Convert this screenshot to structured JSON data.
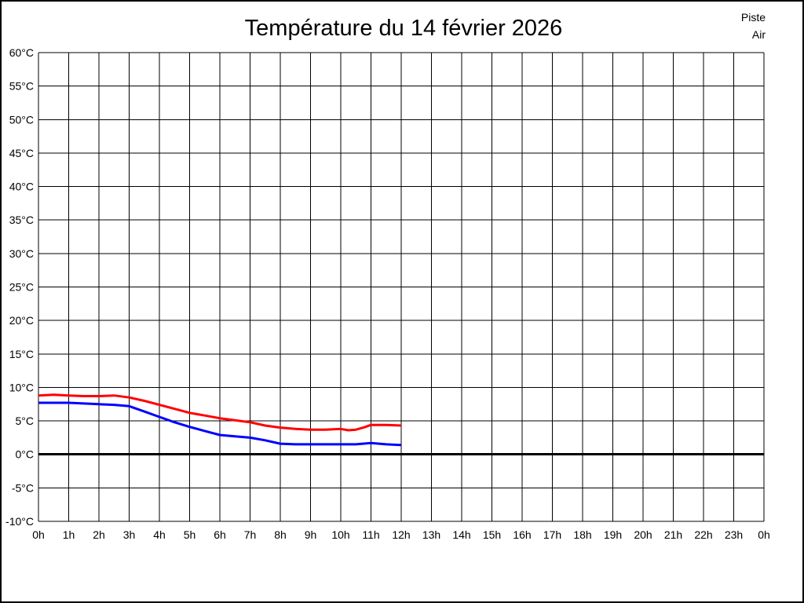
{
  "title": "Température du 14 février 2026",
  "legend": {
    "items": [
      {
        "label": "Piste",
        "color": "#ff0000"
      },
      {
        "label": "Air",
        "color": "#0000ff"
      }
    ]
  },
  "chart_data": {
    "type": "line",
    "title": "Température du 14 février 2026",
    "xlabel": "",
    "ylabel": "",
    "xlim": [
      0,
      24
    ],
    "ylim": [
      -10,
      60
    ],
    "grid": true,
    "legend_position": "top-right",
    "zero_line_thick": true,
    "background": "#ffffff",
    "grid_color": "#000000",
    "x_ticks": [
      {
        "value": 0,
        "label": "0h"
      },
      {
        "value": 1,
        "label": "1h"
      },
      {
        "value": 2,
        "label": "2h"
      },
      {
        "value": 3,
        "label": "3h"
      },
      {
        "value": 4,
        "label": "4h"
      },
      {
        "value": 5,
        "label": "5h"
      },
      {
        "value": 6,
        "label": "6h"
      },
      {
        "value": 7,
        "label": "7h"
      },
      {
        "value": 8,
        "label": "8h"
      },
      {
        "value": 9,
        "label": "9h"
      },
      {
        "value": 10,
        "label": "10h"
      },
      {
        "value": 11,
        "label": "11h"
      },
      {
        "value": 12,
        "label": "12h"
      },
      {
        "value": 13,
        "label": "13h"
      },
      {
        "value": 14,
        "label": "14h"
      },
      {
        "value": 15,
        "label": "15h"
      },
      {
        "value": 16,
        "label": "16h"
      },
      {
        "value": 17,
        "label": "17h"
      },
      {
        "value": 18,
        "label": "18h"
      },
      {
        "value": 19,
        "label": "19h"
      },
      {
        "value": 20,
        "label": "20h"
      },
      {
        "value": 21,
        "label": "21h"
      },
      {
        "value": 22,
        "label": "22h"
      },
      {
        "value": 23,
        "label": "23h"
      },
      {
        "value": 24,
        "label": "0h"
      }
    ],
    "y_ticks": [
      {
        "value": 60,
        "label": "60°C"
      },
      {
        "value": 55,
        "label": "55°C"
      },
      {
        "value": 50,
        "label": "50°C"
      },
      {
        "value": 45,
        "label": "45°C"
      },
      {
        "value": 40,
        "label": "40°C"
      },
      {
        "value": 35,
        "label": "35°C"
      },
      {
        "value": 30,
        "label": "30°C"
      },
      {
        "value": 25,
        "label": "25°C"
      },
      {
        "value": 20,
        "label": "20°C"
      },
      {
        "value": 15,
        "label": "15°C"
      },
      {
        "value": 10,
        "label": "10°C"
      },
      {
        "value": 5,
        "label": "5°C"
      },
      {
        "value": 0,
        "label": "0°C"
      },
      {
        "value": -5,
        "label": "-5°C"
      },
      {
        "value": -10,
        "label": "-10°C"
      }
    ],
    "series": [
      {
        "name": "Piste",
        "color": "#ff0000",
        "points": [
          [
            0,
            8.8
          ],
          [
            0.5,
            8.9
          ],
          [
            1,
            8.8
          ],
          [
            1.5,
            8.7
          ],
          [
            2,
            8.7
          ],
          [
            2.5,
            8.8
          ],
          [
            3,
            8.5
          ],
          [
            3.5,
            8.0
          ],
          [
            4,
            7.4
          ],
          [
            4.5,
            6.8
          ],
          [
            5,
            6.2
          ],
          [
            5.5,
            5.8
          ],
          [
            6,
            5.4
          ],
          [
            6.5,
            5.1
          ],
          [
            7,
            4.8
          ],
          [
            7.5,
            4.3
          ],
          [
            8,
            4.0
          ],
          [
            8.5,
            3.8
          ],
          [
            9,
            3.7
          ],
          [
            9.5,
            3.7
          ],
          [
            10,
            3.8
          ],
          [
            10.25,
            3.6
          ],
          [
            10.5,
            3.7
          ],
          [
            10.75,
            4.0
          ],
          [
            11,
            4.4
          ],
          [
            11.5,
            4.4
          ],
          [
            12,
            4.3
          ]
        ]
      },
      {
        "name": "Air",
        "color": "#0000ff",
        "points": [
          [
            0,
            7.7
          ],
          [
            0.5,
            7.7
          ],
          [
            1,
            7.7
          ],
          [
            1.5,
            7.6
          ],
          [
            2,
            7.5
          ],
          [
            2.5,
            7.4
          ],
          [
            3,
            7.2
          ],
          [
            3.5,
            6.4
          ],
          [
            4,
            5.6
          ],
          [
            4.5,
            4.8
          ],
          [
            5,
            4.1
          ],
          [
            5.5,
            3.5
          ],
          [
            6,
            2.9
          ],
          [
            6.5,
            2.7
          ],
          [
            7,
            2.5
          ],
          [
            7.5,
            2.1
          ],
          [
            8,
            1.6
          ],
          [
            8.5,
            1.5
          ],
          [
            9,
            1.5
          ],
          [
            9.5,
            1.5
          ],
          [
            10,
            1.5
          ],
          [
            10.5,
            1.5
          ],
          [
            11,
            1.7
          ],
          [
            11.5,
            1.5
          ],
          [
            12,
            1.4
          ]
        ]
      }
    ]
  }
}
